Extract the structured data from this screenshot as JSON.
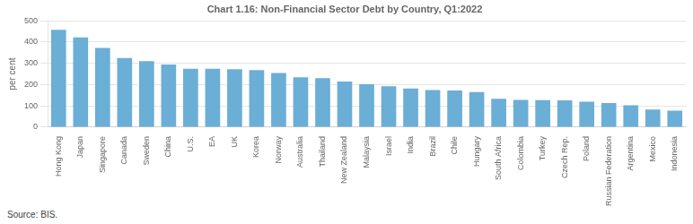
{
  "chart_data": {
    "type": "bar",
    "title": "Chart 1.16: Non-Financial Sector Debt by Country, Q1:2022",
    "y_label": "per cent",
    "annotations": [
      "Source: BIS."
    ],
    "categories": [
      "Hong Kong",
      "Japan",
      "Singapore",
      "Canada",
      "Sweden",
      "China",
      "U.S.",
      "EA",
      "UK",
      "Korea",
      "Norway",
      "Australia",
      "Thailand",
      "New Zealand",
      "Malaysia",
      "Israel",
      "India",
      "Brazil",
      "Chile",
      "Hungary",
      "South Africa",
      "Colombia",
      "Turkey",
      "Czech Rep.",
      "Poland",
      "Russian Federation",
      "Argentina",
      "Mexico",
      "Indonesia"
    ],
    "values": [
      458,
      422,
      372,
      325,
      310,
      295,
      275,
      275,
      272,
      268,
      255,
      235,
      230,
      215,
      202,
      192,
      182,
      175,
      172,
      165,
      133,
      128,
      127,
      126,
      120,
      113,
      103,
      83,
      78
    ],
    "color": "#6baed6",
    "ylim": [
      0,
      500
    ],
    "yticks": [
      0,
      100,
      200,
      300,
      400,
      500
    ],
    "grid": true
  }
}
